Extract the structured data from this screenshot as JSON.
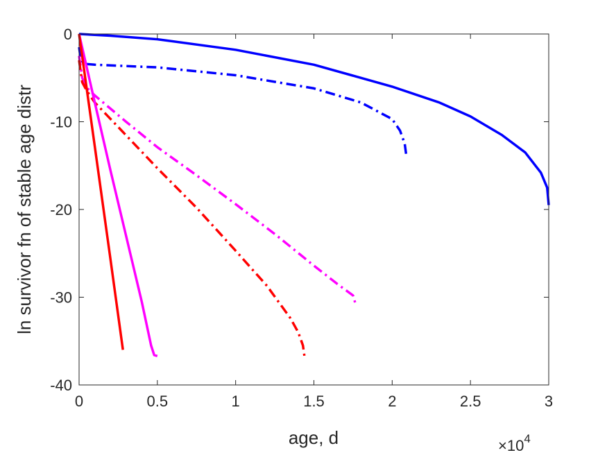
{
  "chart_data": {
    "type": "line",
    "xlabel": "age, d",
    "ylabel": "ln survivor fn of stable age distr",
    "x_multiplier_base": "×10",
    "x_multiplier_exp": "4",
    "xlim": [
      0,
      30000
    ],
    "ylim": [
      -40,
      0
    ],
    "xticks": [
      0,
      5000,
      10000,
      15000,
      20000,
      25000,
      30000
    ],
    "xtick_labels": [
      "0",
      "0.5",
      "1",
      "1.5",
      "2",
      "2.5",
      "3"
    ],
    "yticks": [
      0,
      -10,
      -20,
      -30,
      -40
    ],
    "ytick_labels": [
      "0",
      "-10",
      "-20",
      "-30",
      "-40"
    ],
    "grid": false,
    "series": [
      {
        "color": "#0000ff",
        "style": "solid",
        "x": [
          0,
          2000,
          5000,
          10000,
          15000,
          20000,
          23000,
          25000,
          27000,
          28500,
          29500,
          29900,
          30000
        ],
        "y": [
          0,
          -0.2,
          -0.6,
          -1.8,
          -3.5,
          -6.0,
          -7.8,
          -9.4,
          -11.5,
          -13.5,
          -15.8,
          -17.5,
          -19.5
        ]
      },
      {
        "color": "#0000ff",
        "style": "dashdot",
        "x": [
          0,
          100,
          300,
          1000,
          5000,
          10000,
          15000,
          18000,
          20000,
          20500,
          20800,
          20900
        ],
        "y": [
          -1.5,
          -2.8,
          -3.4,
          -3.5,
          -3.8,
          -4.7,
          -6.2,
          -7.8,
          -9.7,
          -11.0,
          -12.5,
          -13.8
        ]
      },
      {
        "color": "#ff00ff",
        "style": "dashdot",
        "x": [
          0,
          200,
          600,
          1000,
          3000,
          5000,
          7500,
          10000,
          12500,
          15000,
          16500,
          17500,
          17700
        ],
        "y": [
          -2.5,
          -5.0,
          -6.3,
          -7.0,
          -10.0,
          -12.9,
          -16.1,
          -19.4,
          -22.8,
          -26.4,
          -28.5,
          -29.8,
          -31.0
        ]
      },
      {
        "color": "#ff0000",
        "style": "dashdot",
        "x": [
          0,
          200,
          500,
          1000,
          2500,
          5000,
          7500,
          10000,
          12000,
          13500,
          14000,
          14300,
          14400
        ],
        "y": [
          -3.0,
          -5.5,
          -6.5,
          -7.8,
          -10.6,
          -15.3,
          -19.8,
          -24.7,
          -28.7,
          -32.4,
          -34.0,
          -35.5,
          -36.8
        ]
      },
      {
        "color": "#ff00ff",
        "style": "solid",
        "x": [
          0,
          1000,
          2000,
          3000,
          4000,
          4600,
          4800,
          5000
        ],
        "y": [
          0,
          -7.8,
          -15.5,
          -23.0,
          -30.5,
          -35.5,
          -36.6,
          -36.7
        ]
      },
      {
        "color": "#ff0000",
        "style": "solid",
        "x": [
          0,
          1000,
          2000,
          2800
        ],
        "y": [
          0,
          -12.8,
          -25.6,
          -36.0
        ]
      }
    ]
  }
}
